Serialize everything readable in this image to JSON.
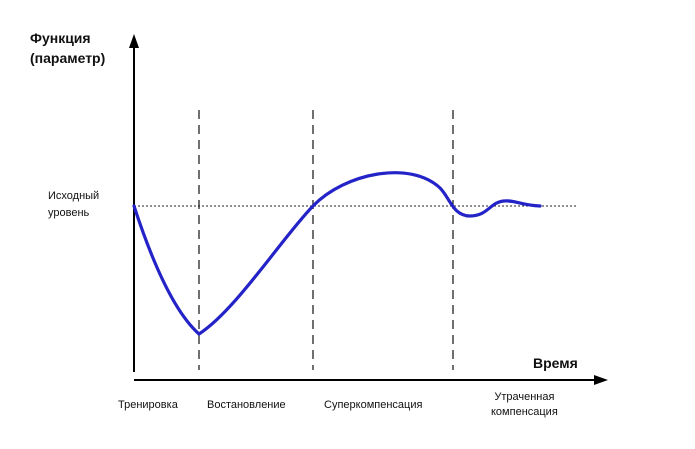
{
  "diagram": {
    "y_axis_label": [
      "Функция",
      "(параметр)"
    ],
    "x_axis_label": "Время",
    "baseline_label": [
      "Исходный",
      "уровень"
    ],
    "phases": [
      "Тренировка",
      "Востановление",
      "Суперкомпенсация",
      [
        "Утраченная",
        "компенсация"
      ]
    ],
    "colors": {
      "curve": "#2323c8",
      "axes": "#000000",
      "guides": "#222222"
    }
  }
}
